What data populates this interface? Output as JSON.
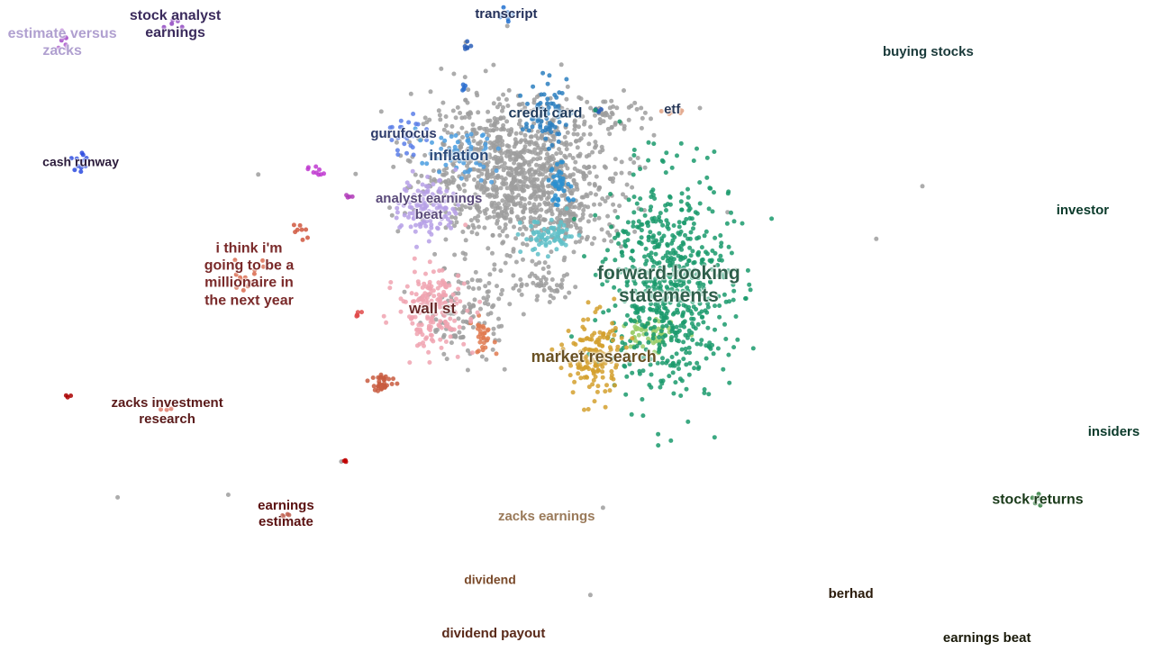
{
  "chart_data": {
    "type": "scatter",
    "title": "",
    "xlabel": "",
    "ylabel": "",
    "xlim": [
      0,
      100
    ],
    "ylim": [
      0,
      100
    ],
    "grid": false,
    "legend": "none",
    "noise_color": "#9e9e9e",
    "clusters": [
      {
        "label": "forward-looking statements",
        "color": "#1a9a6c",
        "text_color": "#2e5e4a",
        "size": 21,
        "x": 58.0,
        "y": 56.3,
        "spread": [
          4.5,
          14
        ],
        "count": 650
      },
      {
        "label": "market research",
        "color": "#d4a02e",
        "text_color": "#6a5224",
        "size": 18,
        "x": 51.5,
        "y": 45.1,
        "spread": [
          2.0,
          5.5
        ],
        "count": 150
      },
      {
        "label": "wall st",
        "color": "#f0a3b0",
        "text_color": "#6a2a2a",
        "size": 17,
        "x": 37.5,
        "y": 52.6,
        "spread": [
          2.5,
          5.0
        ],
        "count": 180
      },
      {
        "label": "inflation",
        "color": "#4a9ee0",
        "text_color": "#2a4a7a",
        "size": 17,
        "x": 39.8,
        "y": 76.1,
        "spread": [
          3.0,
          3.0
        ],
        "count": 60
      },
      {
        "label": "credit card",
        "color": "#2b7fc0",
        "text_color": "#1e3a5c",
        "size": 16,
        "x": 47.3,
        "y": 82.6,
        "spread": [
          1.5,
          4.0
        ],
        "count": 70
      },
      {
        "label": "gurufocus",
        "color": "#5a7ee8",
        "text_color": "#2c3a6a",
        "size": 15,
        "x": 35.0,
        "y": 79.4,
        "spread": [
          1.5,
          2.5
        ],
        "count": 25
      },
      {
        "label": "analyst earnings beat",
        "color": "#b6a0e6",
        "text_color": "#5a4a7a",
        "size": 15,
        "x": 37.2,
        "y": 68.2,
        "spread": [
          2.0,
          4.0
        ],
        "count": 120
      },
      {
        "label": "i think i'm going to be a millionaire in the next year",
        "color": "#d96a4e",
        "text_color": "#7a2a2a",
        "size": 16,
        "x": 21.6,
        "y": 57.8,
        "spread": [
          1.5,
          2.5
        ],
        "count": 15
      },
      {
        "label": "cash runway",
        "color": "#2a4adf",
        "text_color": "#2a1a3a",
        "size": 14,
        "x": 7.0,
        "y": 75.1,
        "spread": [
          0.6,
          1.6
        ],
        "count": 12
      },
      {
        "label": "transcript",
        "color": "#1f6fcf",
        "text_color": "#23305a",
        "size": 15,
        "x": 43.9,
        "y": 97.8,
        "spread": [
          0.5,
          1.0
        ],
        "count": 10
      },
      {
        "label": "stock analyst earnings",
        "color": "#8e44c0",
        "text_color": "#3a2a5c",
        "size": 16,
        "x": 15.2,
        "y": 96.3,
        "spread": [
          0.6,
          1.2
        ],
        "count": 6
      },
      {
        "label": "estimate versus zacks",
        "color": "#a34bc8",
        "text_color": "#b0a0d0",
        "size": 16,
        "x": 5.4,
        "y": 93.5,
        "spread": [
          0.4,
          1.2
        ],
        "count": 8
      },
      {
        "label": "etf",
        "color": "#e0a080",
        "text_color": "#2a3a5a",
        "size": 15,
        "x": 58.3,
        "y": 83.1,
        "spread": [
          0.8,
          0.8
        ],
        "count": 8
      },
      {
        "label": "zacks investment research",
        "color": "#e07a6a",
        "text_color": "#5a1a1a",
        "size": 15,
        "x": 14.5,
        "y": 36.8,
        "spread": [
          0.4,
          0.6
        ],
        "count": 3
      },
      {
        "label": "earnings estimate",
        "color": "#c06050",
        "text_color": "#5a1010",
        "size": 15,
        "x": 24.8,
        "y": 21.0,
        "spread": [
          0.4,
          0.6
        ],
        "count": 4
      },
      {
        "label": "zacks earnings",
        "color": "#c8b080",
        "text_color": "#9a7a5a",
        "size": 15,
        "x": 47.4,
        "y": 20.6,
        "spread": [
          0.4,
          0.5
        ],
        "count": 2
      },
      {
        "label": "dividend",
        "color": "#c8a060",
        "text_color": "#7a4a2a",
        "size": 14,
        "x": 42.5,
        "y": 10.9,
        "spread": [
          0.2,
          0.2
        ],
        "count": 0
      },
      {
        "label": "dividend payout",
        "color": "#e0b060",
        "text_color": "#5a2a1a",
        "size": 15,
        "x": 42.8,
        "y": 2.6,
        "spread": [
          0.2,
          0.2
        ],
        "count": 1
      },
      {
        "label": "buying stocks",
        "color": "#3a8a5a",
        "text_color": "#1a3a3a",
        "size": 15,
        "x": 80.5,
        "y": 92.0,
        "spread": [
          0.3,
          0.3
        ],
        "count": 0
      },
      {
        "label": "investor",
        "color": "#9a6a8a",
        "text_color": "#0a3a2a",
        "size": 15,
        "x": 93.9,
        "y": 67.6,
        "spread": [
          0.3,
          0.3
        ],
        "count": 0
      },
      {
        "label": "insiders",
        "color": "#3a8a4a",
        "text_color": "#0a3a2a",
        "size": 15,
        "x": 96.6,
        "y": 33.6,
        "spread": [
          0.3,
          0.3
        ],
        "count": 0
      },
      {
        "label": "stock returns",
        "color": "#2a7a3a",
        "text_color": "#1a3a1a",
        "size": 16,
        "x": 90.0,
        "y": 23.2,
        "spread": [
          0.3,
          0.8
        ],
        "count": 6
      },
      {
        "label": "berhad",
        "color": "#8a8a3a",
        "text_color": "#2a1a0a",
        "size": 15,
        "x": 73.8,
        "y": 8.7,
        "spread": [
          0.3,
          0.3
        ],
        "count": 0
      },
      {
        "label": "earnings beat",
        "color": "#7a8a3a",
        "text_color": "#1a1a0a",
        "size": 15,
        "x": 85.6,
        "y": 1.9,
        "spread": [
          0.3,
          0.3
        ],
        "count": 0
      }
    ],
    "extra_groups": [
      {
        "color": "#5fbfc8",
        "x": 47.7,
        "y": 63.6,
        "spread": [
          2.0,
          2.2
        ],
        "count": 70
      },
      {
        "color": "#9acd6a",
        "x": 56.1,
        "y": 48.4,
        "spread": [
          1.8,
          2.5
        ],
        "count": 60
      },
      {
        "color": "#e07a50",
        "x": 41.9,
        "y": 48.4,
        "spread": [
          0.8,
          2.2
        ],
        "count": 30
      },
      {
        "color": "#2a8fd0",
        "x": 48.6,
        "y": 71.5,
        "spread": [
          1.0,
          2.5
        ],
        "count": 40
      },
      {
        "color": "#e04a4a",
        "x": 31.1,
        "y": 51.6,
        "spread": [
          0.3,
          0.5
        ],
        "count": 5
      },
      {
        "color": "#c03ad0",
        "x": 27.3,
        "y": 73.6,
        "spread": [
          0.6,
          0.8
        ],
        "count": 9
      },
      {
        "color": "#b03ab8",
        "x": 30.2,
        "y": 69.7,
        "spread": [
          0.3,
          0.5
        ],
        "count": 4
      },
      {
        "color": "#d0573e",
        "x": 26.2,
        "y": 65.0,
        "spread": [
          0.6,
          1.4
        ],
        "count": 8
      },
      {
        "color": "#c85a3e",
        "x": 33.1,
        "y": 41.3,
        "spread": [
          1.0,
          1.2
        ],
        "count": 30
      },
      {
        "color": "#aa0000",
        "x": 6.1,
        "y": 39.2,
        "spread": [
          0.2,
          0.3
        ],
        "count": 3
      },
      {
        "color": "#c00000",
        "x": 30.0,
        "y": 29.3,
        "spread": [
          0.2,
          0.3
        ],
        "count": 3
      },
      {
        "color": "#2b6fcf",
        "x": 40.3,
        "y": 86.5,
        "spread": [
          0.2,
          0.5
        ],
        "count": 5
      },
      {
        "color": "#2b5fb8",
        "x": 40.5,
        "y": 92.9,
        "spread": [
          0.4,
          0.7
        ],
        "count": 6
      },
      {
        "color": "#2b5fb8",
        "x": 51.9,
        "y": 83.1,
        "spread": [
          0.3,
          0.4
        ],
        "count": 5
      }
    ],
    "noise_groups": [
      {
        "x": 44.5,
        "y": 74.0,
        "spread": [
          7.0,
          9.0
        ],
        "count": 900
      },
      {
        "x": 48.5,
        "y": 68.0,
        "spread": [
          5.0,
          6.0
        ],
        "count": 200
      },
      {
        "x": 40.5,
        "y": 52.0,
        "spread": [
          3.0,
          6.0
        ],
        "count": 120
      },
      {
        "x": 53.0,
        "y": 82.5,
        "spread": [
          2.5,
          1.5
        ],
        "count": 40
      },
      {
        "x": 47.0,
        "y": 56.0,
        "spread": [
          3.0,
          2.0
        ],
        "count": 50
      }
    ],
    "noise_points": [
      [
        22.4,
        73.2
      ],
      [
        60.7,
        83.4
      ],
      [
        54.1,
        86.1
      ],
      [
        80.0,
        71.4
      ],
      [
        76.0,
        63.3
      ],
      [
        63.1,
        67.4
      ],
      [
        10.2,
        23.6
      ],
      [
        19.8,
        24.0
      ],
      [
        51.2,
        8.6
      ],
      [
        52.3,
        22.0
      ],
      [
        29.6,
        29.1
      ],
      [
        40.4,
        93.5
      ],
      [
        44.0,
        96.0
      ]
    ]
  }
}
